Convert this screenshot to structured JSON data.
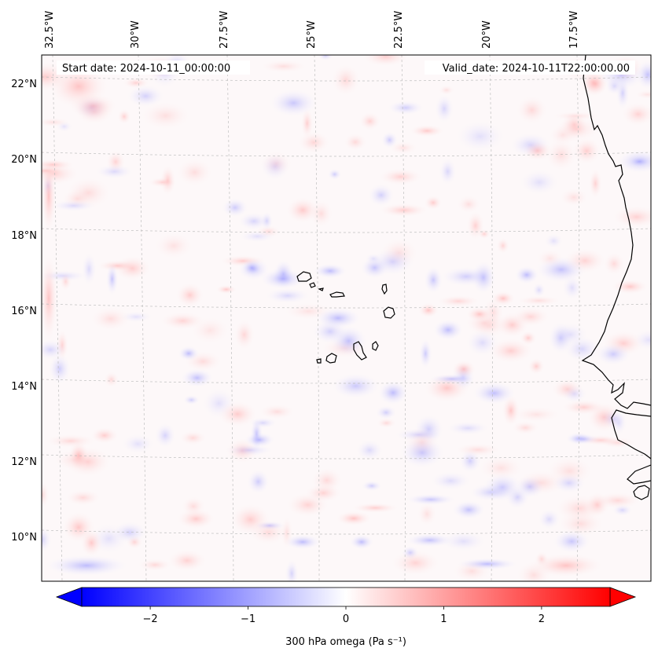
{
  "map": {
    "start_label": "Start date: 2024-10-11_00:00:00",
    "valid_label": "Valid_date: 2024-10-11T22:00:00.00",
    "lon_labels": [
      "32.5°W",
      "30°W",
      "27.5°W",
      "25°W",
      "22.5°W",
      "20°W",
      "17.5°W"
    ],
    "lat_labels": [
      "22°N",
      "20°N",
      "18°N",
      "16°N",
      "14°N",
      "12°N",
      "10°N"
    ],
    "field": "300 hPa omega",
    "colors": {
      "negative": "#0000ff",
      "neutral": "#ffffff",
      "positive": "#ff0000",
      "coast": "#000000",
      "grid": "#b0b0b0"
    }
  },
  "colorbar": {
    "label": "300 hPa omega (Pa s⁻¹)",
    "min": -2.7,
    "max": 2.7,
    "ticks": [
      {
        "value": -2,
        "label": "−2"
      },
      {
        "value": -1,
        "label": "−1"
      },
      {
        "value": 0,
        "label": "0"
      },
      {
        "value": 1,
        "label": "1"
      },
      {
        "value": 2,
        "label": "2"
      }
    ]
  }
}
